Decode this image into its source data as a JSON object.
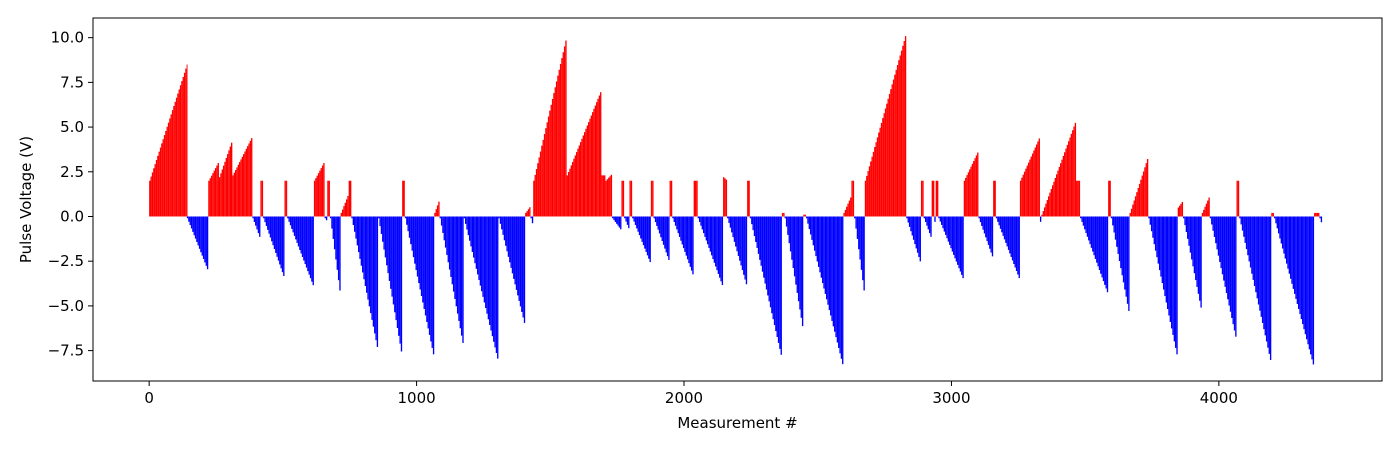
{
  "chart_data": {
    "type": "bar",
    "title": "",
    "xlabel": "Measurement #",
    "ylabel": "Pulse Voltage (V)",
    "xlim": [
      -210,
      4610
    ],
    "ylim": [
      -9.2,
      11.1
    ],
    "x_ticks": [
      0,
      1000,
      2000,
      3000,
      4000
    ],
    "x_tick_labels": [
      "0",
      "1000",
      "2000",
      "3000",
      "4000"
    ],
    "y_ticks": [
      -7.5,
      -5.0,
      -2.5,
      0.0,
      2.5,
      5.0,
      7.5,
      10.0
    ],
    "y_tick_labels": [
      "−7.5",
      "−5.0",
      "−2.5",
      "0.0",
      "2.5",
      "5.0",
      "7.5",
      "10.0"
    ],
    "grid": false,
    "legend": "none",
    "colors": {
      "positive": "#ff0000",
      "negative": "#0000ff",
      "axis": "#000000"
    },
    "segments": [
      {
        "start": 0,
        "end": 140,
        "from": 2.0,
        "to": 8.5,
        "sign": "positive"
      },
      {
        "start": 141,
        "end": 220,
        "from": -0.1,
        "to": -3.1,
        "sign": "negative"
      },
      {
        "start": 221,
        "end": 260,
        "from": 2.0,
        "to": 3.1,
        "sign": "positive"
      },
      {
        "start": 261,
        "end": 310,
        "from": 2.2,
        "to": 4.3,
        "sign": "positive"
      },
      {
        "start": 311,
        "end": 385,
        "from": 2.3,
        "to": 4.5,
        "sign": "positive"
      },
      {
        "start": 386,
        "end": 415,
        "from": -0.1,
        "to": -1.3,
        "sign": "negative"
      },
      {
        "start": 416,
        "end": 425,
        "from": 2.0,
        "to": 2.0,
        "sign": "positive"
      },
      {
        "start": 426,
        "end": 505,
        "from": -0.1,
        "to": -3.5,
        "sign": "negative"
      },
      {
        "start": 506,
        "end": 515,
        "from": 2.0,
        "to": 2.0,
        "sign": "positive"
      },
      {
        "start": 516,
        "end": 615,
        "from": -0.1,
        "to": -4.0,
        "sign": "negative"
      },
      {
        "start": 616,
        "end": 655,
        "from": 2.0,
        "to": 3.1,
        "sign": "positive"
      },
      {
        "start": 656,
        "end": 665,
        "from": -0.1,
        "to": -0.3,
        "sign": "negative"
      },
      {
        "start": 666,
        "end": 675,
        "from": 2.0,
        "to": 2.0,
        "sign": "positive"
      },
      {
        "start": 676,
        "end": 715,
        "from": -0.1,
        "to": -4.6,
        "sign": "negative"
      },
      {
        "start": 716,
        "end": 745,
        "from": 0.2,
        "to": 1.3,
        "sign": "positive"
      },
      {
        "start": 746,
        "end": 755,
        "from": 2.0,
        "to": 2.0,
        "sign": "positive"
      },
      {
        "start": 756,
        "end": 855,
        "from": -0.1,
        "to": -7.6,
        "sign": "negative"
      },
      {
        "start": 856,
        "end": 945,
        "from": -0.1,
        "to": -7.9,
        "sign": "negative"
      },
      {
        "start": 946,
        "end": 955,
        "from": 2.0,
        "to": 2.0,
        "sign": "positive"
      },
      {
        "start": 956,
        "end": 1065,
        "from": -0.1,
        "to": -8.0,
        "sign": "negative"
      },
      {
        "start": 1066,
        "end": 1085,
        "from": 0.2,
        "to": 1.0,
        "sign": "positive"
      },
      {
        "start": 1086,
        "end": 1175,
        "from": -0.1,
        "to": -7.4,
        "sign": "negative"
      },
      {
        "start": 1176,
        "end": 1305,
        "from": -0.1,
        "to": -8.2,
        "sign": "negative"
      },
      {
        "start": 1306,
        "end": 1405,
        "from": -0.1,
        "to": -6.2,
        "sign": "negative"
      },
      {
        "start": 1406,
        "end": 1425,
        "from": 0.2,
        "to": 0.6,
        "sign": "positive"
      },
      {
        "start": 1426,
        "end": 1435,
        "from": -0.1,
        "to": -0.6,
        "sign": "negative"
      },
      {
        "start": 1436,
        "end": 1560,
        "from": 2.0,
        "to": 10.1,
        "sign": "positive"
      },
      {
        "start": 1561,
        "end": 1690,
        "from": 2.3,
        "to": 7.1,
        "sign": "positive"
      },
      {
        "start": 1691,
        "end": 1705,
        "from": 2.3,
        "to": 2.3,
        "sign": "positive"
      },
      {
        "start": 1706,
        "end": 1730,
        "from": 2.0,
        "to": 2.4,
        "sign": "positive"
      },
      {
        "start": 1731,
        "end": 1765,
        "from": -0.1,
        "to": -0.8,
        "sign": "negative"
      },
      {
        "start": 1766,
        "end": 1775,
        "from": 2.0,
        "to": 2.0,
        "sign": "positive"
      },
      {
        "start": 1776,
        "end": 1795,
        "from": -0.1,
        "to": -0.8,
        "sign": "negative"
      },
      {
        "start": 1796,
        "end": 1805,
        "from": 2.0,
        "to": 2.0,
        "sign": "positive"
      },
      {
        "start": 1806,
        "end": 1875,
        "from": -0.1,
        "to": -2.7,
        "sign": "negative"
      },
      {
        "start": 1876,
        "end": 1885,
        "from": 2.0,
        "to": 2.0,
        "sign": "positive"
      },
      {
        "start": 1886,
        "end": 1945,
        "from": -0.1,
        "to": -2.6,
        "sign": "negative"
      },
      {
        "start": 1946,
        "end": 1955,
        "from": 2.0,
        "to": 2.0,
        "sign": "positive"
      },
      {
        "start": 1956,
        "end": 2035,
        "from": -0.1,
        "to": -3.4,
        "sign": "negative"
      },
      {
        "start": 2036,
        "end": 2050,
        "from": 2.0,
        "to": 2.0,
        "sign": "positive"
      },
      {
        "start": 2051,
        "end": 2145,
        "from": -0.1,
        "to": -4.0,
        "sign": "negative"
      },
      {
        "start": 2146,
        "end": 2160,
        "from": 2.2,
        "to": 2.0,
        "sign": "positive"
      },
      {
        "start": 2161,
        "end": 2235,
        "from": -0.1,
        "to": -4.0,
        "sign": "negative"
      },
      {
        "start": 2236,
        "end": 2245,
        "from": 2.0,
        "to": 2.0,
        "sign": "positive"
      },
      {
        "start": 2246,
        "end": 2365,
        "from": -0.1,
        "to": -8.0,
        "sign": "negative"
      },
      {
        "start": 2366,
        "end": 2375,
        "from": 0.2,
        "to": 0.2,
        "sign": "positive"
      },
      {
        "start": 2376,
        "end": 2445,
        "from": -0.1,
        "to": -6.5,
        "sign": "negative"
      },
      {
        "start": 2446,
        "end": 2455,
        "from": 0.1,
        "to": 0.1,
        "sign": "positive"
      },
      {
        "start": 2456,
        "end": 2595,
        "from": -0.1,
        "to": -8.5,
        "sign": "negative"
      },
      {
        "start": 2596,
        "end": 2625,
        "from": 0.2,
        "to": 1.2,
        "sign": "positive"
      },
      {
        "start": 2626,
        "end": 2635,
        "from": 2.0,
        "to": 2.0,
        "sign": "positive"
      },
      {
        "start": 2636,
        "end": 2675,
        "from": -0.1,
        "to": -4.6,
        "sign": "negative"
      },
      {
        "start": 2676,
        "end": 2830,
        "from": 2.0,
        "to": 10.3,
        "sign": "positive"
      },
      {
        "start": 2831,
        "end": 2885,
        "from": -0.1,
        "to": -2.7,
        "sign": "negative"
      },
      {
        "start": 2886,
        "end": 2895,
        "from": 2.0,
        "to": 2.0,
        "sign": "positive"
      },
      {
        "start": 2896,
        "end": 2925,
        "from": -0.1,
        "to": -1.3,
        "sign": "negative"
      },
      {
        "start": 2926,
        "end": 2935,
        "from": 2.0,
        "to": 2.0,
        "sign": "positive"
      },
      {
        "start": 2936,
        "end": 2940,
        "from": -0.3,
        "to": -0.3,
        "sign": "negative"
      },
      {
        "start": 2941,
        "end": 2950,
        "from": 2.0,
        "to": 2.0,
        "sign": "positive"
      },
      {
        "start": 2951,
        "end": 3045,
        "from": -0.1,
        "to": -3.6,
        "sign": "negative"
      },
      {
        "start": 3046,
        "end": 3100,
        "from": 2.0,
        "to": 3.7,
        "sign": "positive"
      },
      {
        "start": 3101,
        "end": 3155,
        "from": -0.1,
        "to": -2.4,
        "sign": "negative"
      },
      {
        "start": 3156,
        "end": 3165,
        "from": 2.0,
        "to": 2.0,
        "sign": "positive"
      },
      {
        "start": 3166,
        "end": 3255,
        "from": -0.1,
        "to": -3.6,
        "sign": "negative"
      },
      {
        "start": 3256,
        "end": 3330,
        "from": 2.0,
        "to": 4.5,
        "sign": "positive"
      },
      {
        "start": 3331,
        "end": 3335,
        "from": -0.3,
        "to": -0.3,
        "sign": "negative"
      },
      {
        "start": 3336,
        "end": 3465,
        "from": 0.1,
        "to": 5.4,
        "sign": "positive"
      },
      {
        "start": 3466,
        "end": 3480,
        "from": 2.0,
        "to": 2.0,
        "sign": "positive"
      },
      {
        "start": 3481,
        "end": 3585,
        "from": -0.1,
        "to": -4.4,
        "sign": "negative"
      },
      {
        "start": 3586,
        "end": 3595,
        "from": 2.0,
        "to": 2.0,
        "sign": "positive"
      },
      {
        "start": 3596,
        "end": 3665,
        "from": -0.1,
        "to": -5.6,
        "sign": "negative"
      },
      {
        "start": 3666,
        "end": 3735,
        "from": 0.2,
        "to": 3.4,
        "sign": "positive"
      },
      {
        "start": 3736,
        "end": 3845,
        "from": -0.1,
        "to": -8.0,
        "sign": "negative"
      },
      {
        "start": 3846,
        "end": 3865,
        "from": 0.5,
        "to": 0.9,
        "sign": "positive"
      },
      {
        "start": 3866,
        "end": 3935,
        "from": -0.1,
        "to": -5.4,
        "sign": "negative"
      },
      {
        "start": 3936,
        "end": 3965,
        "from": 0.2,
        "to": 1.2,
        "sign": "positive"
      },
      {
        "start": 3966,
        "end": 4065,
        "from": -0.1,
        "to": -7.0,
        "sign": "negative"
      },
      {
        "start": 4066,
        "end": 4075,
        "from": 2.0,
        "to": 2.0,
        "sign": "positive"
      },
      {
        "start": 4076,
        "end": 4195,
        "from": -0.1,
        "to": -8.3,
        "sign": "negative"
      },
      {
        "start": 4196,
        "end": 4205,
        "from": 0.2,
        "to": 0.2,
        "sign": "positive"
      },
      {
        "start": 4206,
        "end": 4355,
        "from": -0.1,
        "to": -8.5,
        "sign": "negative"
      },
      {
        "start": 4356,
        "end": 4375,
        "from": 0.2,
        "to": 0.2,
        "sign": "positive"
      },
      {
        "start": 4376,
        "end": 4385,
        "from": -0.1,
        "to": -0.5,
        "sign": "negative"
      }
    ]
  }
}
